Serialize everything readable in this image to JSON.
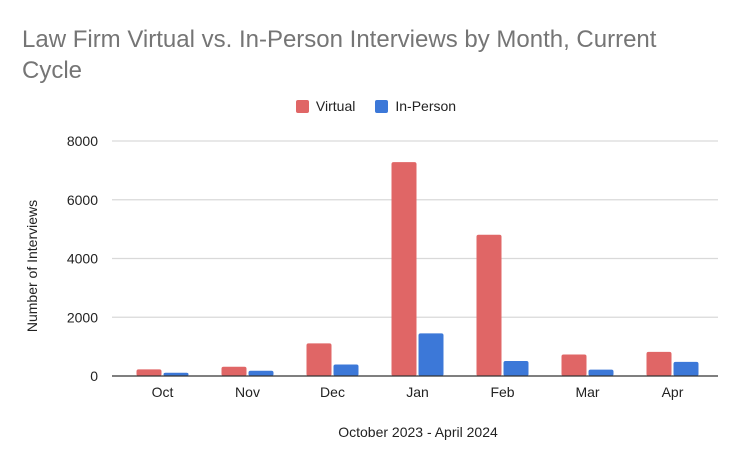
{
  "chart_data": {
    "type": "bar",
    "title": "Law Firm Virtual vs. In-Person Interviews by Month, Current Cycle",
    "xlabel": "October 2023 - April 2024",
    "ylabel": "Number of Interviews",
    "ylim": [
      0,
      8000
    ],
    "yticks": [
      0,
      2000,
      4000,
      6000,
      8000
    ],
    "grid": true,
    "legend_position": "top",
    "categories": [
      "Oct",
      "Nov",
      "Dec",
      "Jan",
      "Feb",
      "Mar",
      "Apr"
    ],
    "series": [
      {
        "name": "Virtual",
        "color": "#e06666",
        "values": [
          225,
          315,
          1110,
          7280,
          4810,
          730,
          820
        ]
      },
      {
        "name": "In-Person",
        "color": "#3c78d8",
        "values": [
          110,
          180,
          390,
          1450,
          510,
          215,
          480
        ]
      }
    ]
  }
}
